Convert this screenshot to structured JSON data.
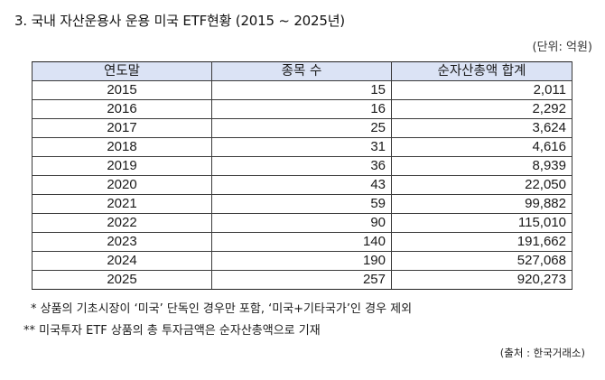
{
  "title": "3. 국내 자산운용사 운용 미국 ETF현황 (2015 ~ 2025년)",
  "unit": "(단위: 억원)",
  "table": {
    "headers": [
      "연도말",
      "종목 수",
      "순자산총액 합계"
    ],
    "rows": [
      {
        "year": "2015",
        "count": "15",
        "amount": "2,011"
      },
      {
        "year": "2016",
        "count": "16",
        "amount": "2,292"
      },
      {
        "year": "2017",
        "count": "25",
        "amount": "3,624"
      },
      {
        "year": "2018",
        "count": "31",
        "amount": "4,616"
      },
      {
        "year": "2019",
        "count": "36",
        "amount": "8,939"
      },
      {
        "year": "2020",
        "count": "43",
        "amount": "22,050"
      },
      {
        "year": "2021",
        "count": "59",
        "amount": "99,882"
      },
      {
        "year": "2022",
        "count": "90",
        "amount": "115,010"
      },
      {
        "year": "2023",
        "count": "140",
        "amount": "191,662"
      },
      {
        "year": "2024",
        "count": "190",
        "amount": "527,068"
      },
      {
        "year": "2025",
        "count": "257",
        "amount": "920,273"
      }
    ]
  },
  "notes": [
    "* 상품의 기초시장이 ‘미국’ 단독인 경우만 포함, ‘미국+기타국가’인 경우 제외",
    "** 미국투자 ETF 상품의 총 투자금액은 순자산총액으로 기재"
  ],
  "source": "(출처 : 한국거래소)",
  "colors": {
    "header_fill": "#dbe3f5",
    "border": "#3a3a3a"
  }
}
